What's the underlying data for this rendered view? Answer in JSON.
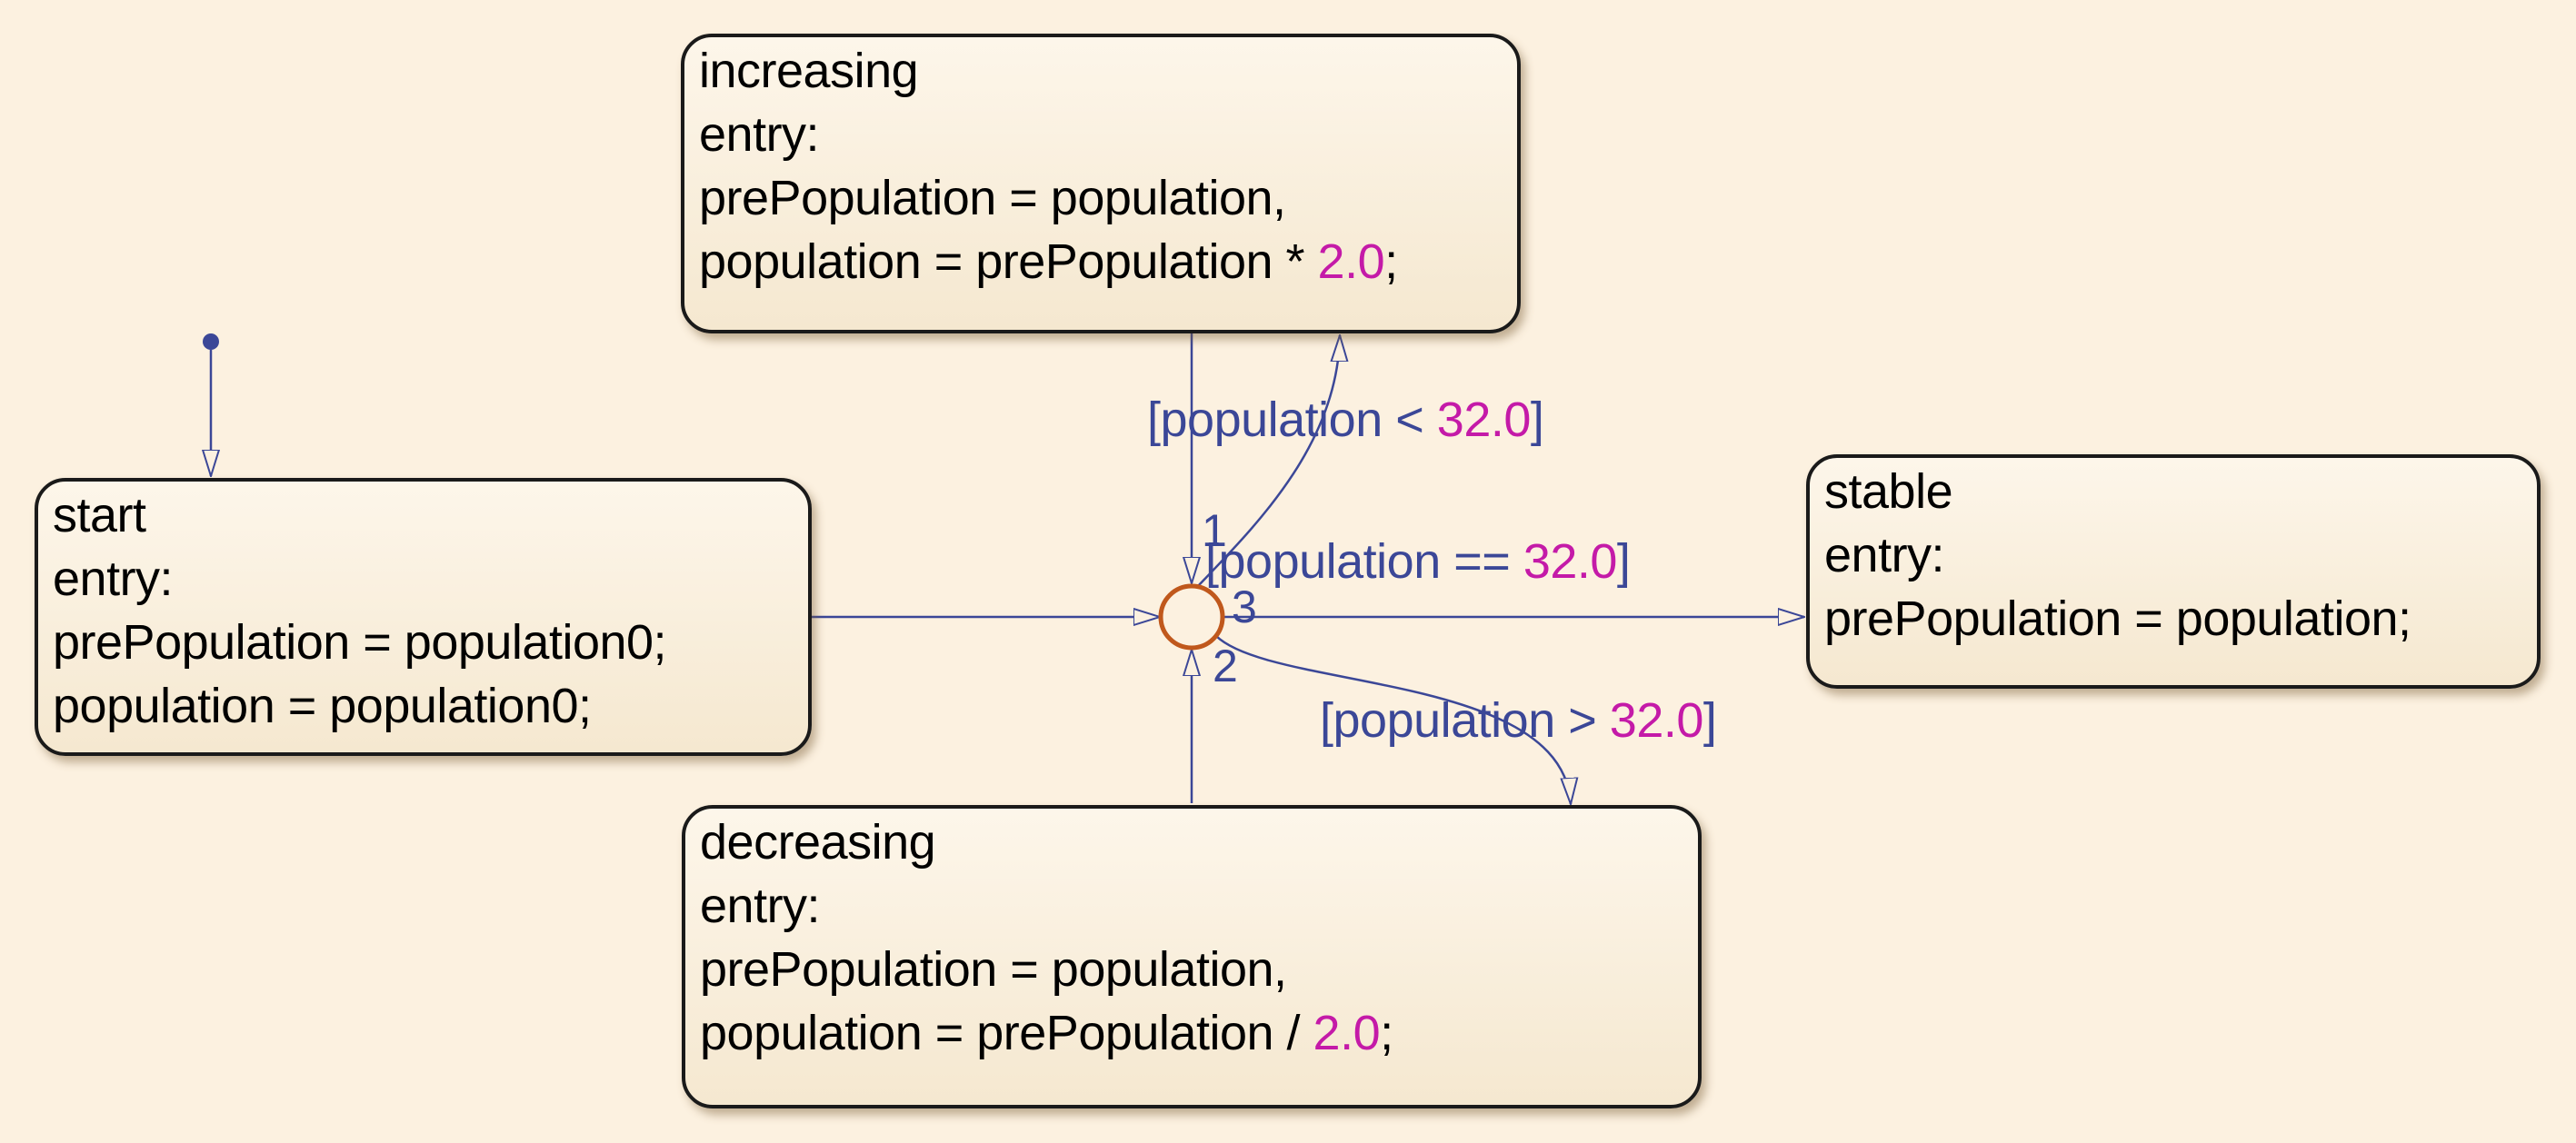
{
  "colors": {
    "background": "#fcf1e0",
    "transition": "#3b4797",
    "number_literal": "#c41aa8",
    "junction": "#c0581c"
  },
  "states": {
    "increasing": {
      "name": "increasing",
      "entry": "entry:",
      "line1": "prePopulation = population,",
      "line2_pre": "population = prePopulation * ",
      "line2_num": "2.0",
      "line2_post": ";"
    },
    "start": {
      "name": "start",
      "entry": "entry:",
      "line1": "prePopulation = population0;",
      "line2": "population = population0;"
    },
    "stable": {
      "name": "stable",
      "entry": "entry:",
      "line1": "prePopulation = population;"
    },
    "decreasing": {
      "name": "decreasing",
      "entry": "entry:",
      "line1": "prePopulation = population,",
      "line2_pre": "population = prePopulation / ",
      "line2_num": "2.0",
      "line2_post": ";"
    }
  },
  "transitions": {
    "to_increasing": {
      "guard_pre": "[population < ",
      "guard_num": "32.0",
      "guard_post": "]",
      "order": "1"
    },
    "to_stable": {
      "guard_pre": "[population == ",
      "guard_num": "32.0",
      "guard_post": "]",
      "order": "3"
    },
    "to_decreasing": {
      "guard_pre": "[population > ",
      "guard_num": "32.0",
      "guard_post": "]",
      "order": "2"
    }
  }
}
